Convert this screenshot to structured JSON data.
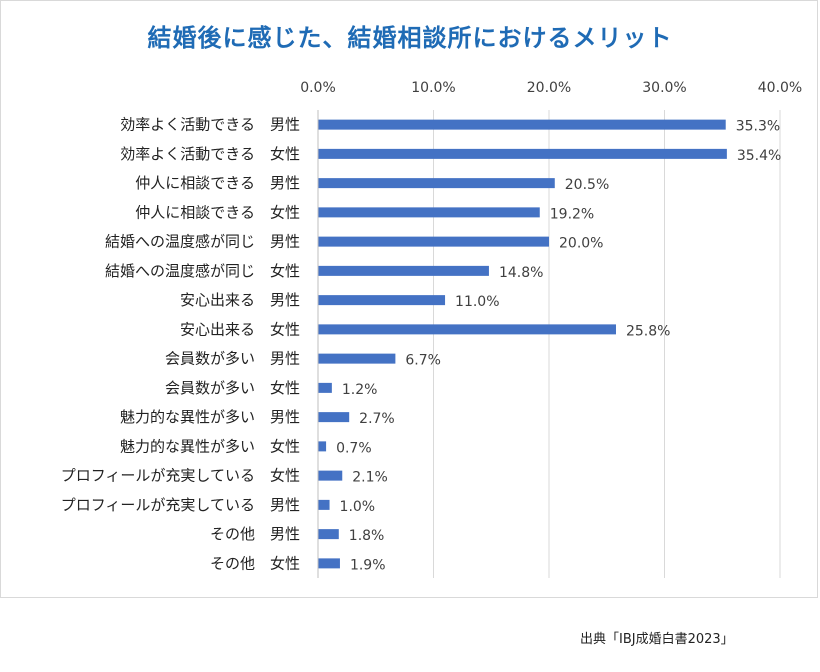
{
  "chart_data": {
    "type": "bar",
    "orientation": "horizontal",
    "title": "結婚後に感じた、結婚相談所におけるメリット",
    "categories": [
      "効率よく活動できる　男性",
      "効率よく活動できる　女性",
      "仲人に相談できる　男性",
      "仲人に相談できる　女性",
      "結婚への温度感が同じ　男性",
      "結婚への温度感が同じ　女性",
      "安心出来る　男性",
      "安心出来る　女性",
      "会員数が多い　男性",
      "会員数が多い　女性",
      "魅力的な異性が多い　男性",
      "魅力的な異性が多い　女性",
      "プロフィールが充実している　女性",
      "プロフィールが充実している　男性",
      "その他　男性",
      "その他　女性"
    ],
    "values": [
      35.3,
      35.4,
      20.5,
      19.2,
      20.0,
      14.8,
      11.0,
      25.8,
      6.7,
      1.2,
      2.7,
      0.7,
      2.1,
      1.0,
      1.8,
      1.9
    ],
    "value_labels": [
      "35.3%",
      "35.4%",
      "20.5%",
      "19.2%",
      "20.0%",
      "14.8%",
      "11.0%",
      "25.8%",
      "6.7%",
      "1.2%",
      "2.7%",
      "0.7%",
      "2.1%",
      "1.0%",
      "1.8%",
      "1.9%"
    ],
    "xlim": [
      0,
      40
    ],
    "xticks": [
      "0.0%",
      "10.0%",
      "20.0%",
      "30.0%",
      "40.0%"
    ],
    "x_axis_position": "top",
    "grid": true,
    "bar_color": "#4472c4"
  },
  "source_note": "出典「IBJ成婚白書2023」"
}
